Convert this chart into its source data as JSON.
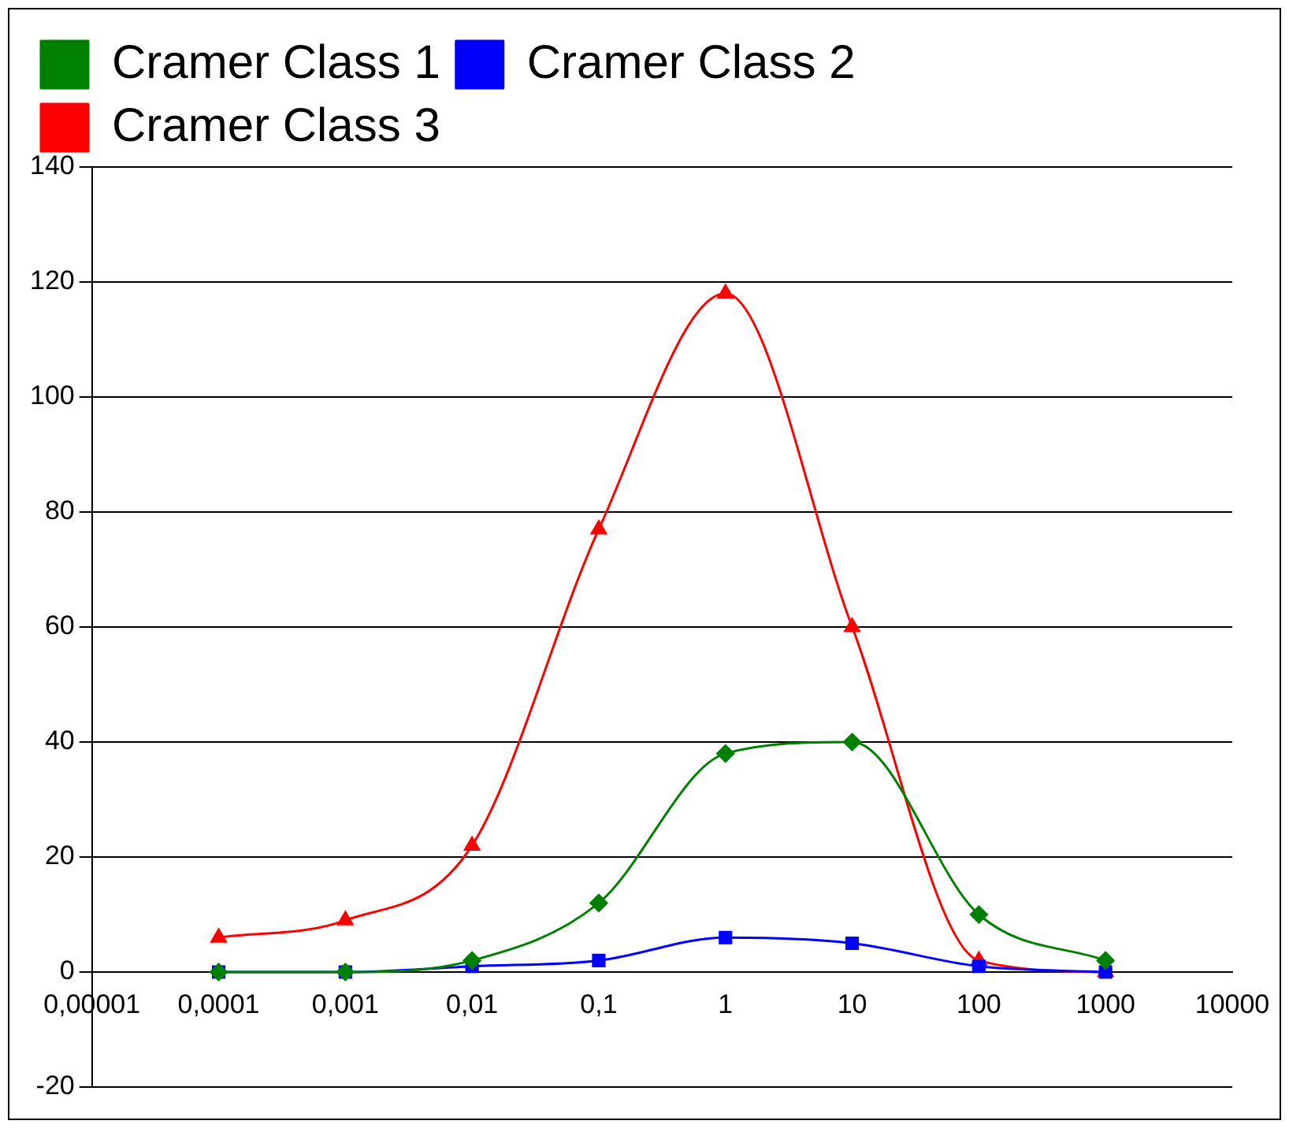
{
  "chart_data": {
    "type": "line",
    "x": [
      0.0001,
      0.001,
      0.01,
      0.1,
      1,
      10,
      100,
      1000
    ],
    "series": [
      {
        "name": "Cramer Class 1",
        "color": "#008000",
        "marker": "diamond",
        "values": [
          0,
          0,
          2,
          12,
          38,
          40,
          10,
          2
        ]
      },
      {
        "name": "Cramer Class 2",
        "color": "#0000ff",
        "marker": "square",
        "values": [
          0,
          0,
          1,
          2,
          6,
          5,
          1,
          0
        ]
      },
      {
        "name": "Cramer Class 3",
        "color": "#ff0000",
        "marker": "triangle",
        "values": [
          6,
          9,
          22,
          77,
          118,
          60,
          2,
          0
        ]
      }
    ],
    "log": "x",
    "xlim": [
      1e-05,
      10000
    ],
    "xticks": [
      {
        "value": 1e-05,
        "label": "0,00001"
      },
      {
        "value": 0.0001,
        "label": "0,0001"
      },
      {
        "value": 0.001,
        "label": "0,001"
      },
      {
        "value": 0.01,
        "label": "0,01"
      },
      {
        "value": 0.1,
        "label": "0,1"
      },
      1,
      10,
      100,
      1000,
      10000
    ],
    "ylim": [
      -20,
      140
    ],
    "yticks": [
      -20,
      0,
      20,
      40,
      60,
      80,
      100,
      120,
      140
    ],
    "grid": "y",
    "legend": "top left"
  }
}
